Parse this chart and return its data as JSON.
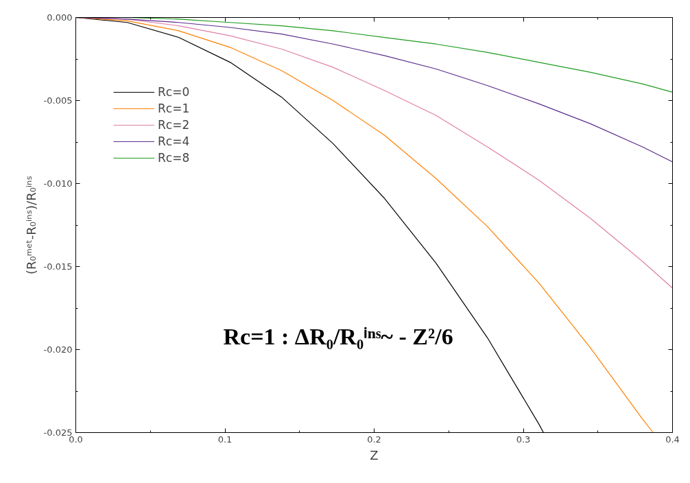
{
  "chart_data": {
    "type": "line",
    "xlabel": "Z",
    "ylabel": "(R₀ᵐᵉᵗ-R₀ⁱⁿˢ)/R₀ⁱⁿˢ",
    "xlim": [
      0,
      0.4
    ],
    "ylim": [
      -0.025,
      0
    ],
    "xticks": [
      {
        "value": 0,
        "label": "0.0"
      },
      0.1,
      0.2,
      0.3,
      0.4
    ],
    "yticks": [
      {
        "value": -0.025,
        "label": "-0.025"
      },
      {
        "value": -0.02,
        "label": "-0.020"
      },
      {
        "value": -0.015,
        "label": "-0.015"
      },
      {
        "value": -0.01,
        "label": "-0.010"
      },
      {
        "value": -0.005,
        "label": "-0.005"
      },
      {
        "value": 0,
        "label": "0.000"
      }
    ],
    "grid": false,
    "legend": "top left",
    "marker": "none",
    "line_style": "solid",
    "annotations": [
      "Rc=1 : ΔR₀/R₀ⁱⁿˢ~ - Z²/6"
    ],
    "x": [
      0,
      0.0345,
      0.069,
      0.1035,
      0.138,
      0.1725,
      0.207,
      0.2415,
      0.276,
      0.3105,
      0.345,
      0.38,
      0.4
    ],
    "series": [
      {
        "name": "Rc=0",
        "color": "#000000",
        "x": [
          0,
          0.0345,
          0.069,
          0.1035,
          0.138,
          0.1725,
          0.207,
          0.2415,
          0.276,
          0.3105,
          0.3135
        ],
        "values": [
          0,
          -0.0003,
          -0.0012,
          -0.0027,
          -0.0048,
          -0.0076,
          -0.0109,
          -0.0148,
          -0.0193,
          -0.0245,
          -0.025
        ]
      },
      {
        "name": "Rc=1",
        "color": "#ff7f00",
        "x": [
          0,
          0.0345,
          0.069,
          0.1035,
          0.138,
          0.1725,
          0.207,
          0.2415,
          0.276,
          0.3105,
          0.345,
          0.38,
          0.387
        ],
        "values": [
          0,
          -0.0002,
          -0.0008,
          -0.0018,
          -0.0032,
          -0.005,
          -0.0071,
          -0.0097,
          -0.0126,
          -0.016,
          -0.0199,
          -0.0242,
          -0.025
        ]
      },
      {
        "name": "Rc=2",
        "color": "#e07fa8",
        "values": [
          0,
          -0.0001,
          -0.0005,
          -0.0011,
          -0.0019,
          -0.003,
          -0.0044,
          -0.0059,
          -0.0078,
          -0.0098,
          -0.0121,
          -0.0147,
          -0.0163
        ]
      },
      {
        "name": "Rc=4",
        "color": "#5a2d8c",
        "values": [
          0,
          -0.0001,
          -0.0003,
          -0.0006,
          -0.001,
          -0.0016,
          -0.0023,
          -0.0031,
          -0.0041,
          -0.0052,
          -0.0064,
          -0.0078,
          -0.0087
        ]
      },
      {
        "name": "Rc=8",
        "color": "#1e9b1e",
        "values": [
          0,
          0,
          -0.0001,
          -0.0003,
          -0.0005,
          -0.0008,
          -0.0012,
          -0.0016,
          -0.0021,
          -0.0027,
          -0.0033,
          -0.004,
          -0.0045
        ]
      }
    ]
  }
}
